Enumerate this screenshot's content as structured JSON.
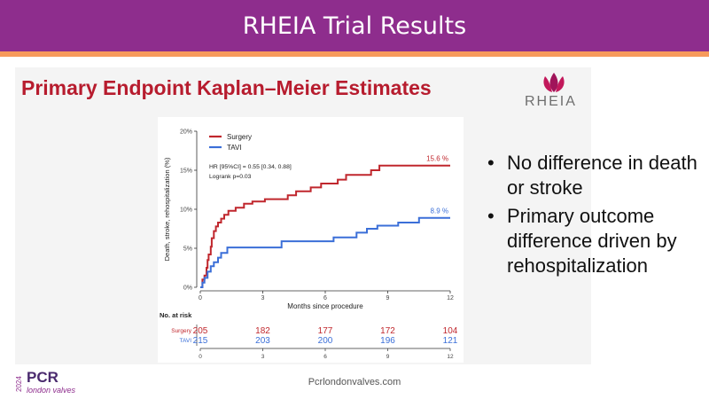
{
  "header": {
    "title": "RHEIA Trial Results"
  },
  "subtitle": "Primary Endpoint Kaplan–Meier Estimates",
  "logo": {
    "text": "RHEIA",
    "icon": "lotus-icon"
  },
  "bullets": [
    "No difference in death or stroke",
    "Primary outcome difference driven by rehospitalization"
  ],
  "footer": {
    "url": "Pcrlondonvalves.com",
    "brand_year": "2024",
    "brand_name": "PCR",
    "brand_sub": "london valves"
  },
  "colors": {
    "surgery": "#c0272d",
    "tavi": "#3b6fd8",
    "header": "#8e2d8d",
    "accent": "#f79a5b",
    "title_red": "#b71c2e"
  },
  "chart_data": {
    "type": "line",
    "title": "",
    "xlabel": "Months since procedure",
    "ylabel": "Death, stroke, rehospitalization (%)",
    "xlim": [
      0,
      12
    ],
    "ylim": [
      0,
      20
    ],
    "x_ticks": [
      0,
      3,
      6,
      9,
      12
    ],
    "y_ticks": [
      0,
      5,
      10,
      15,
      20
    ],
    "y_tick_labels": [
      "0%",
      "5%",
      "10%",
      "15%",
      "20%"
    ],
    "legend": {
      "position": "top-left",
      "entries": [
        "Surgery",
        "TAVI"
      ]
    },
    "annotations": [
      "HR [95%CI] = 0.55 [0.34, 0.88]",
      "Logrank p=0.03"
    ],
    "series": [
      {
        "name": "Surgery",
        "end_label": "15.6 %",
        "points": [
          [
            0,
            0
          ],
          [
            0.1,
            1.0
          ],
          [
            0.2,
            1.5
          ],
          [
            0.3,
            2.5
          ],
          [
            0.35,
            3.5
          ],
          [
            0.4,
            4.2
          ],
          [
            0.5,
            5.2
          ],
          [
            0.55,
            6.3
          ],
          [
            0.65,
            7.2
          ],
          [
            0.75,
            7.8
          ],
          [
            0.85,
            8.3
          ],
          [
            1.0,
            8.8
          ],
          [
            1.15,
            9.3
          ],
          [
            1.35,
            9.8
          ],
          [
            1.7,
            10.2
          ],
          [
            2.1,
            10.7
          ],
          [
            2.5,
            11.0
          ],
          [
            3.1,
            11.3
          ],
          [
            3.6,
            11.3
          ],
          [
            4.2,
            11.8
          ],
          [
            4.6,
            12.3
          ],
          [
            5.3,
            12.8
          ],
          [
            5.8,
            13.3
          ],
          [
            6.6,
            13.8
          ],
          [
            7.0,
            14.4
          ],
          [
            7.8,
            14.4
          ],
          [
            8.2,
            15.0
          ],
          [
            8.6,
            15.6
          ],
          [
            12,
            15.6
          ]
        ]
      },
      {
        "name": "TAVI",
        "end_label": "8.9 %",
        "points": [
          [
            0,
            0
          ],
          [
            0.1,
            0.6
          ],
          [
            0.2,
            1.2
          ],
          [
            0.35,
            2.0
          ],
          [
            0.5,
            2.7
          ],
          [
            0.65,
            3.2
          ],
          [
            0.85,
            3.8
          ],
          [
            1.0,
            4.4
          ],
          [
            1.3,
            5.1
          ],
          [
            3.8,
            5.1
          ],
          [
            3.9,
            5.9
          ],
          [
            5.5,
            5.9
          ],
          [
            6.4,
            6.4
          ],
          [
            7.3,
            6.4
          ],
          [
            7.5,
            7.0
          ],
          [
            8.0,
            7.5
          ],
          [
            8.5,
            7.9
          ],
          [
            9.5,
            8.3
          ],
          [
            10.5,
            8.9
          ],
          [
            12,
            8.9
          ]
        ]
      }
    ],
    "risk_table": {
      "title": "No. at risk",
      "timepoints": [
        0,
        3,
        6,
        9,
        12
      ],
      "rows": [
        {
          "name": "Surgery",
          "values": [
            205,
            182,
            177,
            172,
            104
          ]
        },
        {
          "name": "TAVI",
          "values": [
            215,
            203,
            200,
            196,
            121
          ]
        }
      ]
    }
  }
}
